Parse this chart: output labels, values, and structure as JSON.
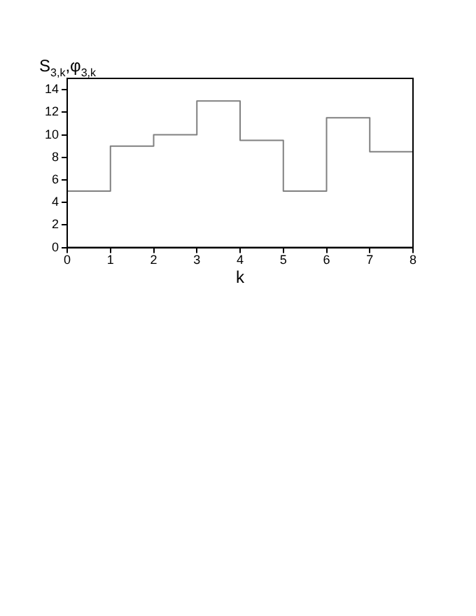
{
  "chart_data": {
    "type": "step",
    "xlabel": "k",
    "ylabel": "S$_{3,k}$,φ$_{3,k}$",
    "x": [
      0,
      1,
      2,
      3,
      4,
      5,
      6,
      7,
      8
    ],
    "series": [
      {
        "color": "#808080",
        "values": [
          5,
          9,
          10,
          13,
          9.5,
          5,
          11.5,
          8.5,
          8.5
        ]
      }
    ],
    "xlim": [
      0,
      8
    ],
    "xticks": [
      0,
      1,
      2,
      3,
      4,
      5,
      6,
      7,
      8
    ],
    "ylim": [
      0,
      15
    ],
    "yticks": [
      0,
      2,
      4,
      6,
      8,
      10,
      12,
      14
    ],
    "grid": false,
    "legend": false
  }
}
